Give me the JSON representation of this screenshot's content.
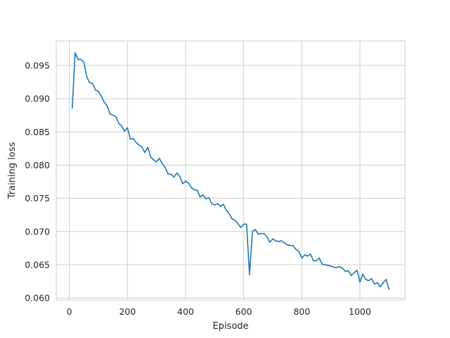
{
  "chart_data": {
    "type": "line",
    "title": "",
    "xlabel": "Episode",
    "ylabel": "Training loss",
    "xlim": [
      -45,
      1155
    ],
    "ylim": [
      0.0597,
      0.0987
    ],
    "grid": true,
    "xticks": [
      0,
      200,
      400,
      600,
      800,
      1000
    ],
    "yticks": [
      0.06,
      0.065,
      0.07,
      0.075,
      0.08,
      0.085,
      0.09,
      0.095
    ],
    "xtick_labels": [
      "0",
      "200",
      "400",
      "600",
      "800",
      "1000"
    ],
    "ytick_labels": [
      "0.060",
      "0.065",
      "0.070",
      "0.075",
      "0.080",
      "0.085",
      "0.090",
      "0.095"
    ],
    "series": [
      {
        "color": "#1f77b4",
        "x": [
          10,
          20,
          30,
          40,
          50,
          60,
          70,
          80,
          90,
          100,
          110,
          120,
          130,
          140,
          150,
          160,
          170,
          180,
          190,
          200,
          210,
          220,
          230,
          240,
          250,
          260,
          270,
          280,
          290,
          300,
          310,
          320,
          330,
          340,
          350,
          360,
          370,
          380,
          390,
          400,
          410,
          420,
          430,
          440,
          450,
          460,
          470,
          480,
          490,
          500,
          510,
          520,
          530,
          540,
          550,
          560,
          570,
          580,
          590,
          600,
          610,
          620,
          630,
          640,
          650,
          660,
          670,
          680,
          690,
          700,
          710,
          720,
          730,
          740,
          750,
          760,
          770,
          780,
          790,
          800,
          810,
          820,
          830,
          840,
          850,
          860,
          870,
          880,
          890,
          900,
          910,
          920,
          930,
          940,
          950,
          960,
          970,
          980,
          990,
          1000,
          1010,
          1020,
          1030,
          1040,
          1050,
          1060,
          1070,
          1080,
          1090,
          1100
        ],
        "y": [
          0.0886,
          0.0969,
          0.0959,
          0.0959,
          0.0955,
          0.0933,
          0.0924,
          0.0923,
          0.0913,
          0.0911,
          0.0904,
          0.0895,
          0.0889,
          0.0877,
          0.0875,
          0.0873,
          0.0863,
          0.0859,
          0.0851,
          0.0856,
          0.0839,
          0.084,
          0.0834,
          0.083,
          0.0827,
          0.0819,
          0.0827,
          0.0812,
          0.0808,
          0.0805,
          0.081,
          0.0802,
          0.0796,
          0.0787,
          0.0786,
          0.0782,
          0.0788,
          0.0783,
          0.0772,
          0.0776,
          0.0773,
          0.0766,
          0.0763,
          0.0762,
          0.0752,
          0.0755,
          0.0749,
          0.0751,
          0.0742,
          0.074,
          0.0742,
          0.0738,
          0.0741,
          0.0732,
          0.0727,
          0.0719,
          0.0717,
          0.0712,
          0.0706,
          0.0711,
          0.0711,
          0.0635,
          0.07,
          0.0703,
          0.0696,
          0.0697,
          0.0697,
          0.0692,
          0.0684,
          0.0689,
          0.0686,
          0.0685,
          0.0686,
          0.0683,
          0.068,
          0.0679,
          0.0679,
          0.0673,
          0.067,
          0.066,
          0.0665,
          0.0663,
          0.0666,
          0.0656,
          0.0656,
          0.066,
          0.0651,
          0.065,
          0.0649,
          0.0648,
          0.0646,
          0.0646,
          0.0647,
          0.0645,
          0.064,
          0.0641,
          0.0634,
          0.0638,
          0.0642,
          0.0624,
          0.0636,
          0.0628,
          0.0626,
          0.0629,
          0.0621,
          0.0623,
          0.0617,
          0.0623,
          0.0628,
          0.0613
        ]
      }
    ]
  }
}
